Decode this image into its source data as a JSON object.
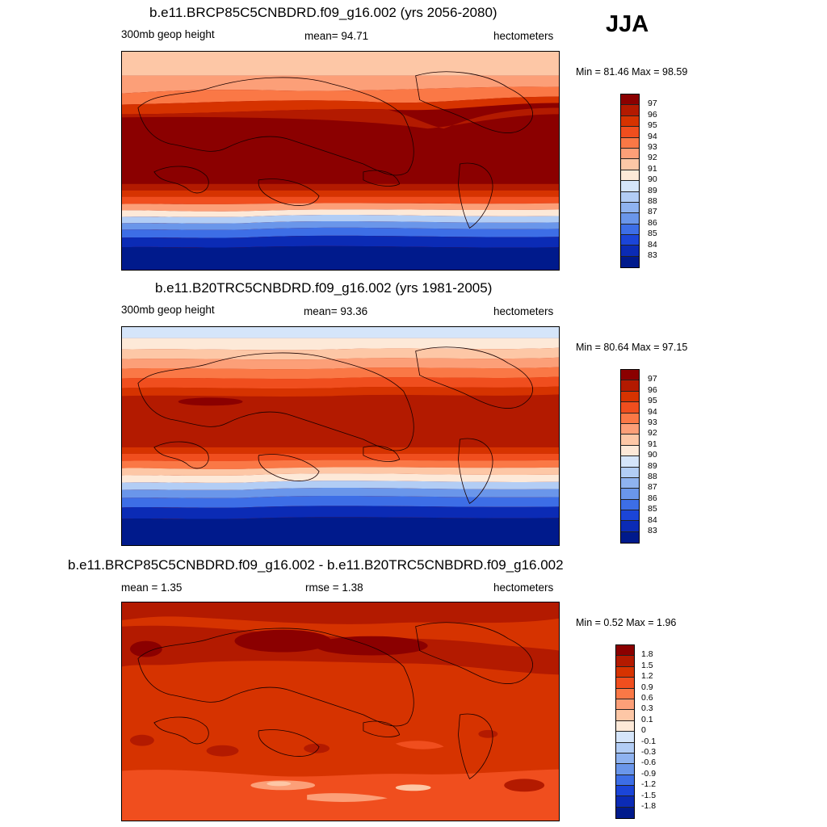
{
  "season": "JJA",
  "panels": [
    {
      "title": "b.e11.BRCP85C5CNBDRD.f09_g16.002 (yrs 2056-2080)",
      "left_label": "300mb geop height",
      "center_label": "mean=  94.71",
      "right_label": "hectometers",
      "minmax": "Min =  81.46 Max =  98.59",
      "legend_labels": [
        "97",
        "96",
        "95",
        "94",
        "93",
        "92",
        "91",
        "90",
        "89",
        "88",
        "87",
        "86",
        "85",
        "84",
        "83"
      ],
      "legend_colors": [
        "#8b0000",
        "#b31a00",
        "#d63300",
        "#f04e1e",
        "#fa7846",
        "#fc9f78",
        "#fdc7a6",
        "#fde9d8",
        "#d5e5fa",
        "#b2cdf5",
        "#8fb3f0",
        "#6a96ea",
        "#3d6ee6",
        "#1b45d8",
        "#0b2bb5",
        "#001a8c"
      ]
    },
    {
      "title": "b.e11.B20TRC5CNBDRD.f09_g16.002 (yrs 1981-2005)",
      "left_label": "300mb geop height",
      "center_label": "mean=  93.36",
      "right_label": "hectometers",
      "minmax": "Min =  80.64 Max =  97.15",
      "legend_labels": [
        "97",
        "96",
        "95",
        "94",
        "93",
        "92",
        "91",
        "90",
        "89",
        "88",
        "87",
        "86",
        "85",
        "84",
        "83"
      ],
      "legend_colors": [
        "#8b0000",
        "#b31a00",
        "#d63300",
        "#f04e1e",
        "#fa7846",
        "#fc9f78",
        "#fdc7a6",
        "#fde9d8",
        "#d5e5fa",
        "#b2cdf5",
        "#8fb3f0",
        "#6a96ea",
        "#3d6ee6",
        "#1b45d8",
        "#0b2bb5",
        "#001a8c"
      ]
    },
    {
      "title": "b.e11.BRCP85C5CNBDRD.f09_g16.002 - b.e11.B20TRC5CNBDRD.f09_g16.002",
      "left_label": "mean =   1.35",
      "center_label": "rmse =   1.38",
      "right_label": "hectometers",
      "minmax": "Min =   0.52 Max =   1.96",
      "legend_labels": [
        "1.8",
        "1.5",
        "1.2",
        "0.9",
        "0.6",
        "0.3",
        "0.1",
        "0",
        "-0.1",
        "-0.3",
        "-0.6",
        "-0.9",
        "-1.2",
        "-1.5",
        "-1.8"
      ],
      "legend_colors": [
        "#8b0000",
        "#b31a00",
        "#d63300",
        "#f04e1e",
        "#fa7846",
        "#fc9f78",
        "#fdc7a6",
        "#fde9d8",
        "#d5e5fa",
        "#b2cdf5",
        "#8fb3f0",
        "#6a96ea",
        "#3d6ee6",
        "#1b45d8",
        "#0b2bb5",
        "#001a8c"
      ]
    }
  ]
}
